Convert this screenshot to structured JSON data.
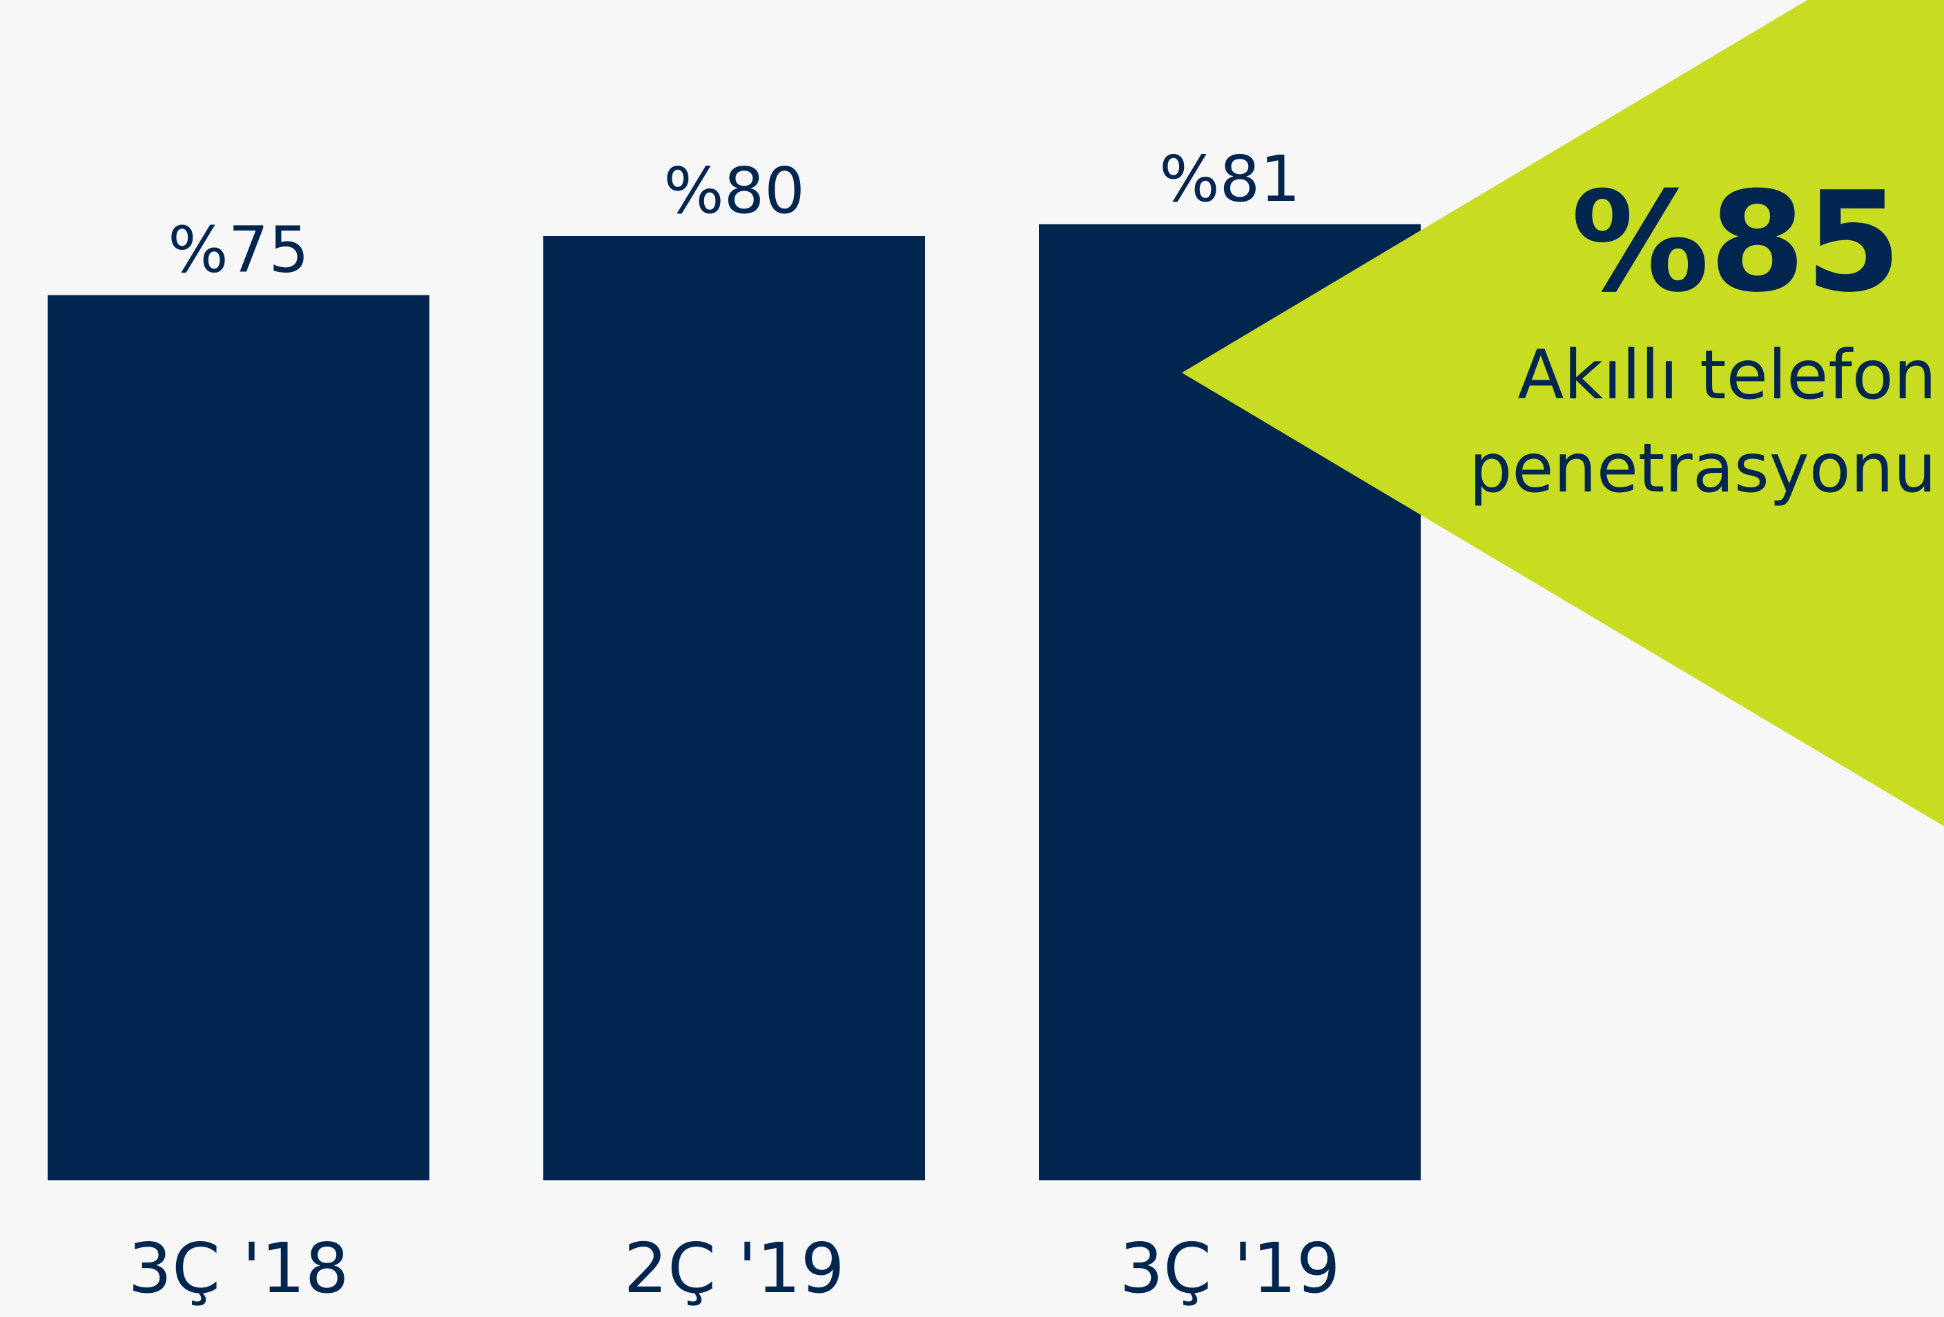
{
  "chart_data": {
    "type": "bar",
    "categories": [
      "3Ç '18",
      "2Ç '19",
      "3Ç '19"
    ],
    "values": [
      75,
      80,
      81
    ],
    "value_labels": [
      "%75",
      "%80",
      "%81"
    ],
    "ylim": [
      0,
      100
    ],
    "grid": false,
    "bar_color": "#002650",
    "label_color": "#002650"
  },
  "callout": {
    "value": "%85",
    "line1": "Akıllı telefon",
    "line2": "penetrasyonu",
    "color": "#c8dc22",
    "text_color": "#002650"
  }
}
